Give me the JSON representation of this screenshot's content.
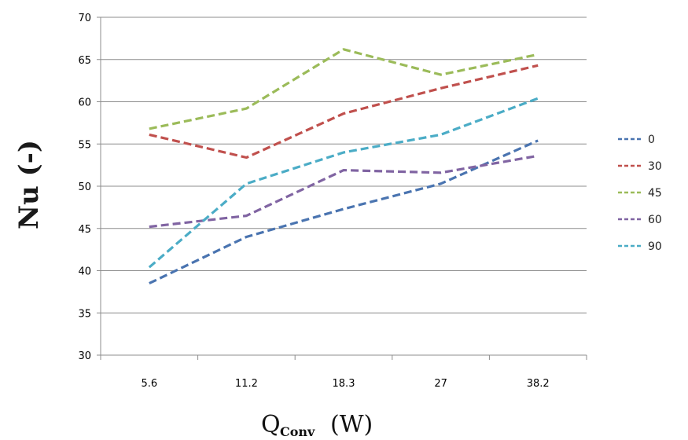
{
  "chart_data": {
    "type": "line",
    "categories": [
      "5.6",
      "11.2",
      "18.3",
      "27",
      "38.2"
    ],
    "ylim": [
      30,
      70
    ],
    "yticks": [
      30,
      35,
      40,
      45,
      50,
      55,
      60,
      65,
      70
    ],
    "grid": true,
    "legend_position": "right",
    "ylabel": "Nu (-)",
    "xlabel": {
      "main": "Q",
      "sub": "Conv",
      "unit": "(W)"
    },
    "series": [
      {
        "name": "0",
        "color": "#4a74b0",
        "values": [
          38.5,
          44.0,
          47.3,
          50.3,
          55.4
        ]
      },
      {
        "name": "30",
        "color": "#c0504d",
        "values": [
          56.1,
          53.4,
          58.6,
          61.6,
          64.3
        ]
      },
      {
        "name": "45",
        "color": "#9bbb59",
        "values": [
          56.8,
          59.2,
          66.2,
          63.2,
          65.6
        ]
      },
      {
        "name": "60",
        "color": "#8064a2",
        "values": [
          45.2,
          46.5,
          51.9,
          51.6,
          53.6
        ]
      },
      {
        "name": "90",
        "color": "#4bacc6",
        "values": [
          40.4,
          50.3,
          54.0,
          56.1,
          60.4
        ]
      }
    ]
  }
}
